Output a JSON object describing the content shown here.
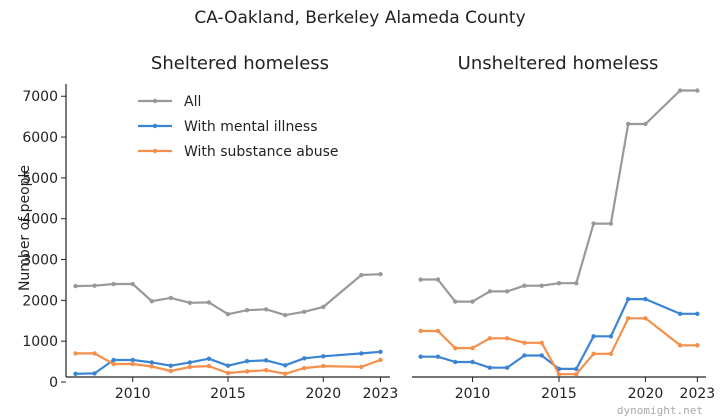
{
  "chart_data": {
    "type": "line",
    "suptitle": "CA-Oakland, Berkeley Alameda County",
    "ylabel": "Number of people",
    "ylim": [
      0,
      7300
    ],
    "yticks": [
      0,
      1000,
      2000,
      3000,
      4000,
      5000,
      6000,
      7000
    ],
    "legend": {
      "placement": "top-left of left panel",
      "entries": [
        "All",
        "With mental illness",
        "With substance abuse"
      ]
    },
    "colors": {
      "All": "#999999",
      "With mental illness": "#3b84d4",
      "With substance abuse": "#f58f4c"
    },
    "watermark": "dynomight.net",
    "panels": [
      {
        "title": "Sheltered homeless",
        "xlim": [
          2006.5,
          2023.5
        ],
        "xticks": [
          2010,
          2015,
          2020,
          2023
        ],
        "series": [
          {
            "name": "All",
            "points": [
              [
                2007,
                2350
              ],
              [
                2008,
                2360
              ],
              [
                2009,
                2400
              ],
              [
                2010,
                2400
              ],
              [
                2011,
                1980
              ],
              [
                2012,
                2060
              ],
              [
                2013,
                1940
              ],
              [
                2014,
                1950
              ],
              [
                2015,
                1660
              ],
              [
                2016,
                1760
              ],
              [
                2017,
                1780
              ],
              [
                2018,
                1640
              ],
              [
                2019,
                1720
              ],
              [
                2020,
                1840
              ],
              [
                2022,
                2620
              ],
              [
                2023,
                2640
              ]
            ]
          },
          {
            "name": "With mental illness",
            "points": [
              [
                2007,
                200
              ],
              [
                2008,
                210
              ],
              [
                2009,
                540
              ],
              [
                2010,
                540
              ],
              [
                2011,
                480
              ],
              [
                2012,
                400
              ],
              [
                2013,
                480
              ],
              [
                2014,
                570
              ],
              [
                2015,
                400
              ],
              [
                2016,
                510
              ],
              [
                2017,
                530
              ],
              [
                2018,
                410
              ],
              [
                2019,
                580
              ],
              [
                2020,
                630
              ],
              [
                2022,
                700
              ],
              [
                2023,
                740
              ]
            ]
          },
          {
            "name": "With substance abuse",
            "points": [
              [
                2007,
                700
              ],
              [
                2008,
                700
              ],
              [
                2009,
                440
              ],
              [
                2010,
                440
              ],
              [
                2011,
                380
              ],
              [
                2012,
                270
              ],
              [
                2013,
                370
              ],
              [
                2014,
                390
              ],
              [
                2015,
                220
              ],
              [
                2016,
                260
              ],
              [
                2017,
                290
              ],
              [
                2018,
                200
              ],
              [
                2019,
                340
              ],
              [
                2020,
                390
              ],
              [
                2022,
                370
              ],
              [
                2023,
                540
              ]
            ]
          }
        ]
      },
      {
        "title": "Unsheltered homeless",
        "xlim": [
          2006.5,
          2023.5
        ],
        "xticks": [
          2010,
          2015,
          2020,
          2023
        ],
        "series": [
          {
            "name": "All",
            "points": [
              [
                2007,
                2510
              ],
              [
                2008,
                2510
              ],
              [
                2009,
                1970
              ],
              [
                2010,
                1970
              ],
              [
                2011,
                2220
              ],
              [
                2012,
                2220
              ],
              [
                2013,
                2360
              ],
              [
                2014,
                2360
              ],
              [
                2015,
                2420
              ],
              [
                2016,
                2420
              ],
              [
                2017,
                3880
              ],
              [
                2018,
                3880
              ],
              [
                2019,
                6320
              ],
              [
                2020,
                6320
              ],
              [
                2022,
                7140
              ],
              [
                2023,
                7140
              ]
            ]
          },
          {
            "name": "With mental illness",
            "points": [
              [
                2007,
                620
              ],
              [
                2008,
                620
              ],
              [
                2009,
                490
              ],
              [
                2010,
                490
              ],
              [
                2011,
                350
              ],
              [
                2012,
                350
              ],
              [
                2013,
                650
              ],
              [
                2014,
                650
              ],
              [
                2015,
                320
              ],
              [
                2016,
                320
              ],
              [
                2017,
                1120
              ],
              [
                2018,
                1120
              ],
              [
                2019,
                2030
              ],
              [
                2020,
                2030
              ],
              [
                2022,
                1670
              ],
              [
                2023,
                1670
              ]
            ]
          },
          {
            "name": "With substance abuse",
            "points": [
              [
                2007,
                1250
              ],
              [
                2008,
                1250
              ],
              [
                2009,
                830
              ],
              [
                2010,
                830
              ],
              [
                2011,
                1070
              ],
              [
                2012,
                1070
              ],
              [
                2013,
                960
              ],
              [
                2014,
                960
              ],
              [
                2015,
                190
              ],
              [
                2016,
                190
              ],
              [
                2017,
                690
              ],
              [
                2018,
                690
              ],
              [
                2019,
                1560
              ],
              [
                2020,
                1560
              ],
              [
                2022,
                900
              ],
              [
                2023,
                900
              ]
            ]
          }
        ]
      }
    ]
  }
}
